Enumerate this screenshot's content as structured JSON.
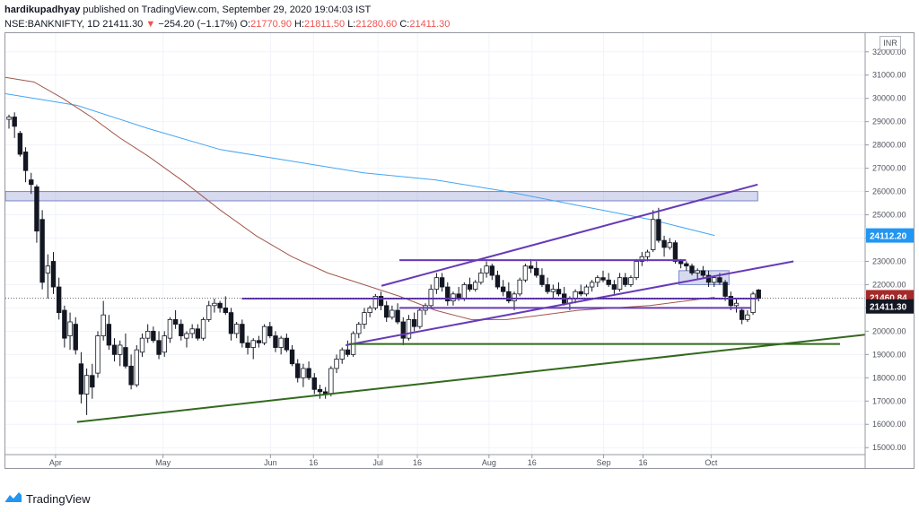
{
  "header": {
    "author": "hardikupadhyay",
    "published_text": "published on TradingView.com, September 29, 2020 19:04:03 IST",
    "symbol": "NSE:BANKNIFTY, 1D",
    "last_price": "21411.30",
    "change_arrow": "▼",
    "change": "−254.20 (−1.17%)",
    "o_label": "O:",
    "o_value": "21770.90",
    "h_label": "H:",
    "h_value": "21811.50",
    "l_label": "L:",
    "l_value": "21280.60",
    "c_label": "C:",
    "c_value": "21411.30"
  },
  "currency": "INR",
  "footer": {
    "brand": "TradingView",
    "logo_icon": "tradingview-logo-icon"
  },
  "price_tags": [
    {
      "label": "24112.20",
      "value": 24112.2,
      "color": "#2196f3"
    },
    {
      "label": "21460.84",
      "value": 21460.84,
      "color": "#a52a2a"
    },
    {
      "label": "21411.30",
      "value": 21411.3,
      "color": "#131722"
    }
  ],
  "chart_data": {
    "type": "candlestick",
    "title": "",
    "xlabel": "",
    "ylabel": "",
    "ylim": [
      14700,
      32800
    ],
    "y_ticks": [
      "15000.00",
      "16000.00",
      "17000.00",
      "18000.00",
      "19000.00",
      "20000.00",
      "21000.00",
      "22000.00",
      "23000.00",
      "24000.00",
      "25000.00",
      "26000.00",
      "27000.00",
      "28000.00",
      "29000.00",
      "30000.00",
      "31000.00",
      "32000.00"
    ],
    "x_ticks": [
      {
        "label": "Apr",
        "day": 14
      },
      {
        "label": "May",
        "day": 44
      },
      {
        "label": "Jun",
        "day": 74
      },
      {
        "label": "16",
        "day": 86
      },
      {
        "label": "Jul",
        "day": 104
      },
      {
        "label": "16",
        "day": 115
      },
      {
        "label": "Aug",
        "day": 135
      },
      {
        "label": "16",
        "day": 147
      },
      {
        "label": "Sep",
        "day": 167
      },
      {
        "label": "16",
        "day": 178
      },
      {
        "label": "Oct",
        "day": 197
      }
    ],
    "candles": [
      [
        29100,
        29300,
        28700,
        29200
      ],
      [
        29200,
        29400,
        28300,
        28800
      ],
      [
        28500,
        28600,
        27500,
        27600
      ],
      [
        27700,
        27900,
        26400,
        26900
      ],
      [
        26500,
        26800,
        25900,
        26300
      ],
      [
        26200,
        26300,
        23800,
        24300
      ],
      [
        24800,
        25200,
        21800,
        22100
      ],
      [
        22500,
        23300,
        21400,
        22800
      ],
      [
        23000,
        23400,
        21600,
        21900
      ],
      [
        21900,
        22300,
        20500,
        20800
      ],
      [
        20900,
        21100,
        19300,
        19700
      ],
      [
        19800,
        20800,
        19200,
        20400
      ],
      [
        20300,
        20600,
        19000,
        19200
      ],
      [
        18600,
        19100,
        16900,
        17300
      ],
      [
        17300,
        18400,
        16400,
        18100
      ],
      [
        18100,
        18600,
        17100,
        17600
      ],
      [
        18200,
        20000,
        18000,
        19800
      ],
      [
        19800,
        21300,
        19600,
        20700
      ],
      [
        20300,
        20700,
        19200,
        19400
      ],
      [
        19400,
        19700,
        18700,
        19000
      ],
      [
        19000,
        19600,
        18500,
        19400
      ],
      [
        19300,
        19900,
        18400,
        18500
      ],
      [
        18500,
        19000,
        17500,
        17700
      ],
      [
        17700,
        19400,
        17600,
        19200
      ],
      [
        19100,
        19900,
        18900,
        19700
      ],
      [
        19700,
        20300,
        19500,
        20000
      ],
      [
        20000,
        20200,
        19500,
        19600
      ],
      [
        19600,
        20000,
        18800,
        19000
      ],
      [
        19100,
        20000,
        18900,
        19800
      ],
      [
        19700,
        20600,
        19500,
        20500
      ],
      [
        20500,
        20900,
        20100,
        20300
      ],
      [
        20300,
        20500,
        19600,
        19800
      ],
      [
        19700,
        20000,
        19300,
        19900
      ],
      [
        19900,
        20300,
        19700,
        20100
      ],
      [
        20100,
        20300,
        19600,
        19700
      ],
      [
        19700,
        20600,
        19600,
        20500
      ],
      [
        20500,
        21300,
        20400,
        21100
      ],
      [
        21100,
        21400,
        20800,
        21200
      ],
      [
        21200,
        21300,
        20800,
        21000
      ],
      [
        21000,
        21500,
        20700,
        20800
      ],
      [
        20800,
        21000,
        19600,
        19900
      ],
      [
        19900,
        20400,
        19700,
        20300
      ],
      [
        20300,
        20500,
        19300,
        19500
      ],
      [
        19500,
        19800,
        19000,
        19300
      ],
      [
        19300,
        19700,
        18800,
        19600
      ],
      [
        19600,
        19800,
        19300,
        19500
      ],
      [
        19500,
        20300,
        19400,
        20200
      ],
      [
        20200,
        20400,
        19700,
        19800
      ],
      [
        19800,
        20000,
        19100,
        19300
      ],
      [
        19300,
        19800,
        19000,
        19700
      ],
      [
        19700,
        19900,
        19100,
        19200
      ],
      [
        19200,
        19400,
        18500,
        18600
      ],
      [
        18600,
        18800,
        17800,
        18000
      ],
      [
        18000,
        18600,
        17600,
        18400
      ],
      [
        18400,
        18700,
        17900,
        18000
      ],
      [
        18000,
        18200,
        17300,
        17500
      ],
      [
        17500,
        17700,
        17100,
        17400
      ],
      [
        17400,
        17600,
        17100,
        17300
      ],
      [
        17300,
        18500,
        17200,
        18400
      ],
      [
        18400,
        19000,
        18200,
        18800
      ],
      [
        18800,
        19300,
        18600,
        19200
      ],
      [
        19200,
        19600,
        18900,
        19000
      ],
      [
        19000,
        20000,
        18900,
        19900
      ],
      [
        19900,
        20400,
        19700,
        20300
      ],
      [
        20300,
        21000,
        20100,
        20800
      ],
      [
        20800,
        21100,
        20600,
        21000
      ],
      [
        21000,
        21600,
        20900,
        21500
      ],
      [
        21500,
        21700,
        20900,
        21100
      ],
      [
        21100,
        21300,
        20400,
        20600
      ],
      [
        20600,
        21100,
        20500,
        20900
      ],
      [
        20900,
        21200,
        20300,
        20400
      ],
      [
        20400,
        20600,
        19400,
        19700
      ],
      [
        19700,
        20700,
        19600,
        20500
      ],
      [
        20500,
        20800,
        20000,
        20200
      ],
      [
        20200,
        21000,
        20100,
        20900
      ],
      [
        20900,
        21200,
        20700,
        21100
      ],
      [
        21100,
        22000,
        21000,
        21800
      ],
      [
        21800,
        22500,
        21600,
        22300
      ],
      [
        22300,
        22500,
        21700,
        21900
      ],
      [
        21900,
        22100,
        21100,
        21300
      ],
      [
        21300,
        21700,
        21100,
        21600
      ],
      [
        21600,
        21900,
        21300,
        21400
      ],
      [
        21400,
        22100,
        21300,
        22000
      ],
      [
        22000,
        22300,
        21700,
        21800
      ],
      [
        21800,
        22200,
        21700,
        22100
      ],
      [
        22100,
        22700,
        22000,
        22500
      ],
      [
        22500,
        23000,
        22300,
        22800
      ],
      [
        22800,
        22900,
        22200,
        22400
      ],
      [
        22400,
        22600,
        21800,
        21900
      ],
      [
        21900,
        22200,
        21500,
        21700
      ],
      [
        21700,
        22100,
        21200,
        21300
      ],
      [
        21300,
        21700,
        20900,
        21600
      ],
      [
        21600,
        22300,
        21500,
        22200
      ],
      [
        22200,
        22900,
        22100,
        22800
      ],
      [
        22800,
        23100,
        22500,
        22700
      ],
      [
        22700,
        23000,
        22300,
        22400
      ],
      [
        22400,
        22700,
        21900,
        22000
      ],
      [
        22000,
        22300,
        21600,
        21700
      ],
      [
        21700,
        22000,
        21400,
        21800
      ],
      [
        21800,
        22100,
        21500,
        21600
      ],
      [
        21600,
        21900,
        21100,
        21200
      ],
      [
        21200,
        21500,
        20900,
        21400
      ],
      [
        21400,
        21800,
        21200,
        21700
      ],
      [
        21700,
        22000,
        21500,
        21600
      ],
      [
        21600,
        22000,
        21500,
        21900
      ],
      [
        21900,
        22200,
        21700,
        22100
      ],
      [
        22100,
        22400,
        21900,
        22300
      ],
      [
        22300,
        22600,
        22100,
        22200
      ],
      [
        22200,
        22500,
        21900,
        22000
      ],
      [
        22000,
        22200,
        21600,
        21800
      ],
      [
        21800,
        22500,
        21700,
        22300
      ],
      [
        22300,
        22500,
        21900,
        22000
      ],
      [
        22000,
        22400,
        21900,
        22300
      ],
      [
        22300,
        23100,
        22200,
        23000
      ],
      [
        23000,
        23400,
        22800,
        23200
      ],
      [
        23200,
        23500,
        23000,
        23400
      ],
      [
        23500,
        25200,
        23400,
        24800
      ],
      [
        24800,
        25300,
        23800,
        23900
      ],
      [
        23900,
        24100,
        23200,
        23600
      ],
      [
        23600,
        24000,
        23500,
        23800
      ],
      [
        23800,
        23900,
        22900,
        23000
      ],
      [
        23000,
        23100,
        22700,
        22900
      ],
      [
        22900,
        23000,
        22600,
        22800
      ],
      [
        22800,
        22900,
        22400,
        22500
      ],
      [
        22500,
        22700,
        22200,
        22600
      ],
      [
        22600,
        22800,
        22300,
        22400
      ],
      [
        22400,
        22600,
        21900,
        22100
      ],
      [
        22100,
        22400,
        21900,
        22300
      ],
      [
        22300,
        22500,
        22000,
        22100
      ],
      [
        22100,
        22200,
        21300,
        21500
      ],
      [
        21500,
        21700,
        20900,
        21100
      ],
      [
        21100,
        21400,
        20800,
        21200
      ],
      [
        20900,
        21000,
        20300,
        20500
      ],
      [
        20500,
        20900,
        20400,
        20700
      ],
      [
        20800,
        21700,
        20700,
        21600
      ],
      [
        21770.9,
        21811.5,
        21280.6,
        21411.3
      ]
    ],
    "candle_start_day": 1,
    "candle_step": 1.55,
    "moving_averages": [
      {
        "name": "",
        "color": "#42a5f5",
        "days": [
          0,
          20,
          40,
          60,
          80,
          100,
          120,
          140,
          160,
          180,
          198
        ],
        "values": [
          30200,
          29700,
          28700,
          27800,
          27300,
          26800,
          26500,
          26000,
          25400,
          24800,
          24112
        ]
      },
      {
        "name": "",
        "color": "#a1574a",
        "days": [
          0,
          8,
          16,
          24,
          32,
          40,
          50,
          60,
          70,
          80,
          90,
          100,
          110,
          120,
          130,
          140,
          150,
          160,
          170,
          180,
          190,
          198
        ],
        "values": [
          30900,
          30700,
          30000,
          29200,
          28300,
          27500,
          26400,
          25200,
          24100,
          23200,
          22500,
          22000,
          21500,
          20900,
          20500,
          20500,
          20700,
          20900,
          21000,
          21100,
          21300,
          21460
        ]
      }
    ],
    "horizontal_zones": [
      {
        "from_day": 0,
        "to_day": 210,
        "y1": 26000,
        "y2": 25600,
        "color": "#7986cb"
      },
      {
        "from_day": 188,
        "to_day": 202,
        "y1": 22600,
        "y2": 22000,
        "color": "#7986cb"
      }
    ],
    "trend_lines": [
      {
        "color": "#673ab7",
        "d1": 110,
        "y1": 23050,
        "d2": 190,
        "y2": 23050
      },
      {
        "color": "#673ab7",
        "d1": 105,
        "y1": 21950,
        "d2": 210,
        "y2": 26300
      },
      {
        "color": "#673ab7",
        "d1": 95,
        "y1": 19400,
        "d2": 220,
        "y2": 23000
      },
      {
        "color": "#673ab7",
        "d1": 66,
        "y1": 21400,
        "d2": 210,
        "y2": 21400
      },
      {
        "color": "#673ab7",
        "d1": 110,
        "y1": 21000,
        "d2": 208,
        "y2": 21000
      },
      {
        "color": "#33691e",
        "d1": 96,
        "y1": 19450,
        "d2": 233,
        "y2": 19450
      },
      {
        "color": "#33691e",
        "d1": 20,
        "y1": 16100,
        "d2": 240,
        "y2": 19850
      }
    ]
  }
}
